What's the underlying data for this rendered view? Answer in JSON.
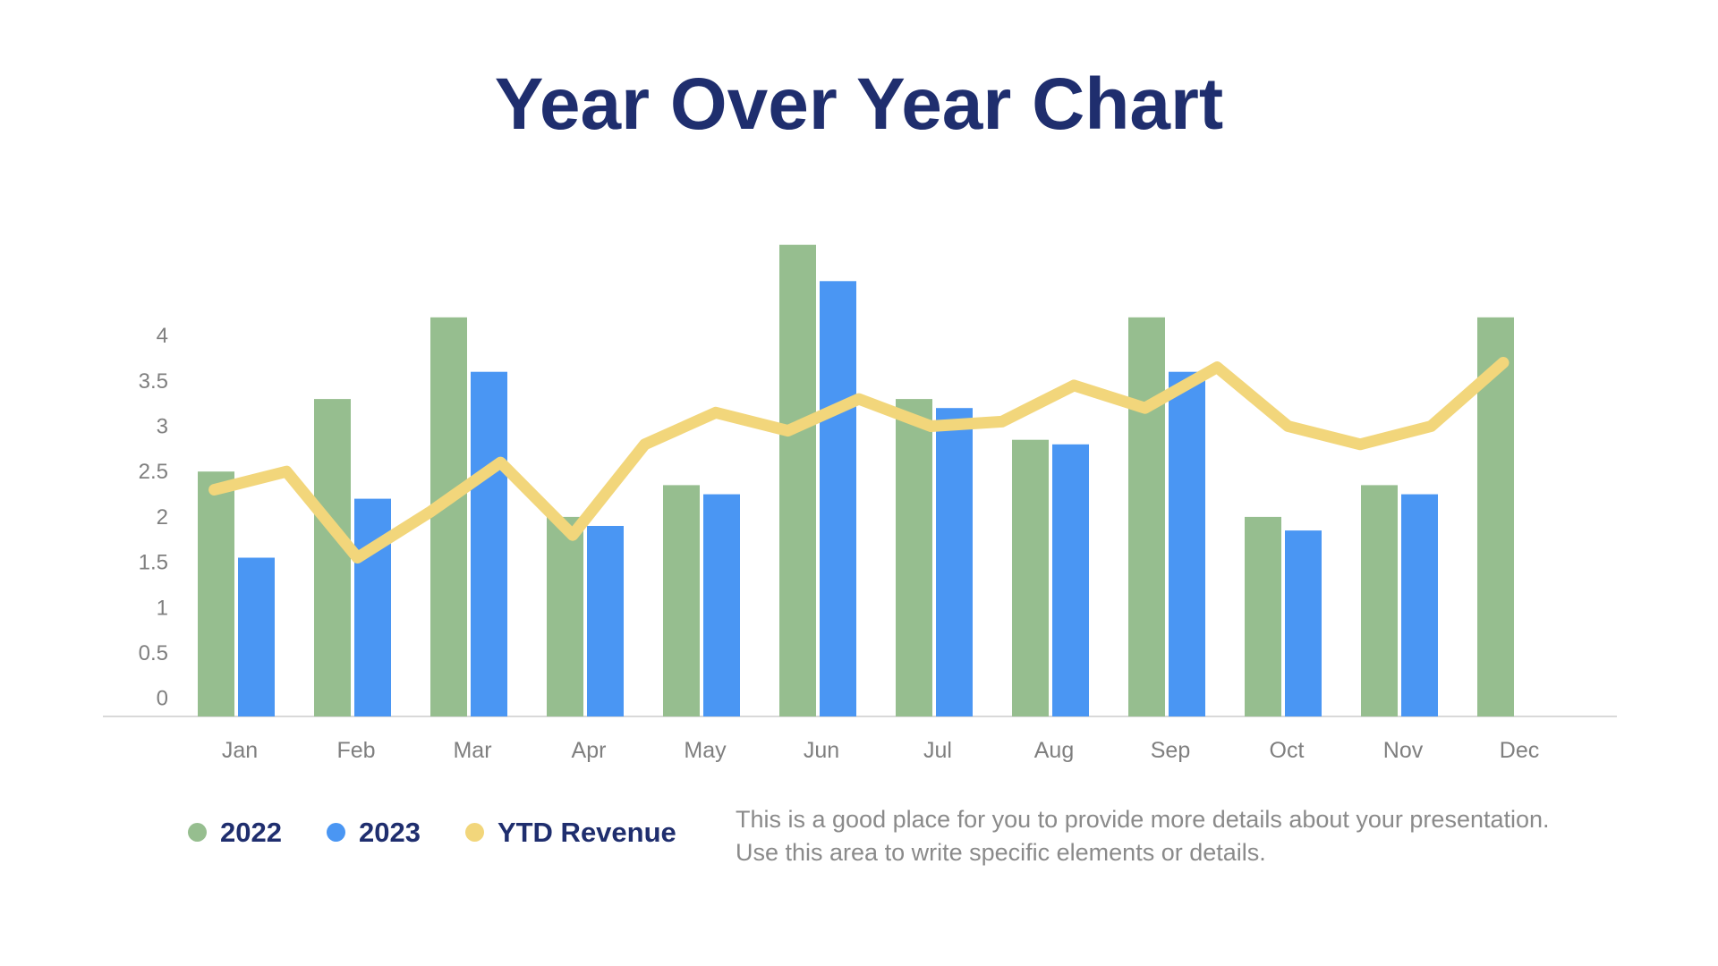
{
  "slide": {
    "title": "Year Over Year Chart",
    "description_line1": "This is a good place for you to provide more details about your presentation.",
    "description_line2": "Use this area to write specific elements or details."
  },
  "colors": {
    "title_navy": "#1F2E6E",
    "bar_2022_green": "#96BE8F",
    "bar_2023_blue": "#4A96F3",
    "line_ytd_yellow": "#F2D67B",
    "axis_text_gray": "#7F7F7F",
    "description_gray": "#8A8A8A",
    "axis_line_gray": "#D9D9D9"
  },
  "legend": [
    {
      "label": "2022",
      "color": "#96BE8F"
    },
    {
      "label": "2023",
      "color": "#4A96F3"
    },
    {
      "label": "YTD Revenue",
      "color": "#F2D67B"
    }
  ],
  "chart_data": {
    "type": "bar",
    "subtype": "grouped bars with overlaid line series",
    "title": "Year Over Year Chart",
    "xlabel": "",
    "ylabel": "",
    "categories": [
      "Jan",
      "Feb",
      "Mar",
      "Apr",
      "May",
      "Jun",
      "Jul",
      "Aug",
      "Sep",
      "Oct",
      "Nov",
      "Dec"
    ],
    "y_ticks": [
      0,
      0.5,
      1,
      1.5,
      2,
      2.5,
      3,
      3.5,
      4
    ],
    "ylim": [
      0,
      5.1
    ],
    "grid": false,
    "legend_position": "bottom-left",
    "series": [
      {
        "name": "2022",
        "type": "bar",
        "color": "#96BE8F",
        "values": [
          2.5,
          3.3,
          4.2,
          2.0,
          2.35,
          5.0,
          3.3,
          2.85,
          4.2,
          2.0,
          2.35,
          4.2
        ]
      },
      {
        "name": "2023",
        "type": "bar",
        "color": "#4A96F3",
        "values": [
          1.55,
          2.2,
          3.6,
          1.9,
          2.25,
          4.6,
          3.2,
          2.8,
          3.6,
          1.85,
          2.25,
          null
        ]
      },
      {
        "name": "YTD Revenue",
        "type": "line",
        "color": "#F2D67B",
        "x_unit_note": "x is in month units: 1 = Jan center, 12 = Dec center; the line has 19 evenly spaced points spanning the plot",
        "points": [
          {
            "x": 0.82,
            "y": 2.3
          },
          {
            "x": 1.44,
            "y": 2.5
          },
          {
            "x": 2.05,
            "y": 1.55
          },
          {
            "x": 2.67,
            "y": 2.05
          },
          {
            "x": 3.28,
            "y": 2.6
          },
          {
            "x": 3.9,
            "y": 1.8
          },
          {
            "x": 4.52,
            "y": 2.8
          },
          {
            "x": 5.13,
            "y": 3.15
          },
          {
            "x": 5.75,
            "y": 2.95
          },
          {
            "x": 6.36,
            "y": 3.3
          },
          {
            "x": 6.98,
            "y": 3.0
          },
          {
            "x": 7.59,
            "y": 3.05
          },
          {
            "x": 8.21,
            "y": 3.45
          },
          {
            "x": 8.82,
            "y": 3.2
          },
          {
            "x": 9.44,
            "y": 3.65
          },
          {
            "x": 10.05,
            "y": 3.0
          },
          {
            "x": 10.67,
            "y": 2.8
          },
          {
            "x": 11.28,
            "y": 3.0
          },
          {
            "x": 11.9,
            "y": 3.7
          }
        ]
      }
    ]
  }
}
